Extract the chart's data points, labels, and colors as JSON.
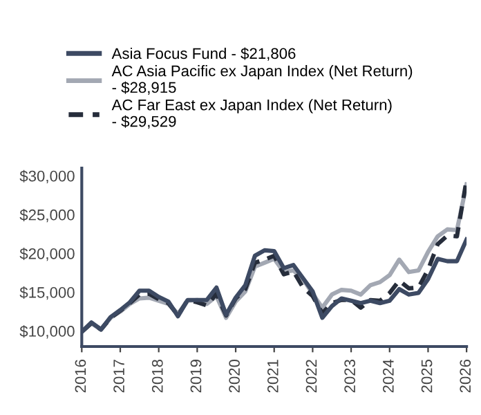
{
  "chart_data": {
    "type": "line",
    "x": [
      2016.0,
      2016.25,
      2016.5,
      2016.75,
      2017.0,
      2017.25,
      2017.5,
      2017.75,
      2018.0,
      2018.25,
      2018.5,
      2018.75,
      2019.0,
      2019.25,
      2019.5,
      2019.75,
      2020.0,
      2020.25,
      2020.5,
      2020.75,
      2021.0,
      2021.25,
      2021.5,
      2021.75,
      2022.0,
      2022.25,
      2022.5,
      2022.75,
      2023.0,
      2023.25,
      2023.5,
      2023.75,
      2024.0,
      2024.25,
      2024.5,
      2024.75,
      2025.0,
      2025.25,
      2025.5,
      2025.75,
      2026.0
    ],
    "series": [
      {
        "name": "Asia Focus Fund - $21,806",
        "color": "#3d4a63",
        "line_style": "solid",
        "values": [
          9900,
          11100,
          10200,
          11800,
          12700,
          13700,
          15200,
          15200,
          14400,
          13800,
          11900,
          14000,
          14000,
          14000,
          15600,
          12100,
          14300,
          15900,
          19700,
          20400,
          20300,
          18100,
          18500,
          16800,
          15100,
          11700,
          13200,
          14200,
          13900,
          13600,
          13900,
          13600,
          13900,
          15400,
          14700,
          14900,
          16700,
          19300,
          19000,
          19000,
          21800
        ]
      },
      {
        "name": "AC Asia Pacific ex Japan Index (Net Return) - $28,915",
        "color": "#a3a8b3",
        "line_style": "solid",
        "values": [
          9900,
          11000,
          10200,
          11700,
          12500,
          13500,
          14200,
          14300,
          13900,
          13500,
          12200,
          13900,
          14000,
          13500,
          14500,
          11700,
          13800,
          15100,
          18300,
          18800,
          19300,
          17600,
          17800,
          16700,
          14800,
          13000,
          14700,
          15300,
          15200,
          14700,
          15900,
          16300,
          17200,
          19200,
          17600,
          17800,
          20200,
          22200,
          23100,
          23000,
          28900
        ]
      },
      {
        "name": "AC Far East ex Japan Index (Net Return) - $29,529",
        "color": "#262d3b",
        "line_style": "dashed",
        "values": [
          9900,
          11000,
          10200,
          11700,
          12600,
          13600,
          14700,
          14800,
          14100,
          13600,
          12000,
          14000,
          13700,
          13300,
          14800,
          12000,
          14200,
          15400,
          18800,
          19200,
          19700,
          17300,
          17700,
          15600,
          14500,
          12300,
          13600,
          14000,
          14000,
          13000,
          14000,
          13900,
          14900,
          16500,
          15500,
          15600,
          17900,
          21200,
          22300,
          22200,
          29500
        ]
      }
    ],
    "xlim": [
      2016,
      2026
    ],
    "xticks": [
      2016,
      2017,
      2018,
      2019,
      2020,
      2021,
      2022,
      2023,
      2024,
      2025,
      2026
    ],
    "ylim": [
      8000,
      31000
    ],
    "yticks": [
      {
        "value": 10000,
        "label": "$10,000"
      },
      {
        "value": 15000,
        "label": "$15,000"
      },
      {
        "value": 20000,
        "label": "$20,000"
      },
      {
        "value": 25000,
        "label": "$25,000"
      },
      {
        "value": 30000,
        "label": "$30,000"
      }
    ],
    "grid": false,
    "legend": "top left",
    "marker": "none"
  }
}
